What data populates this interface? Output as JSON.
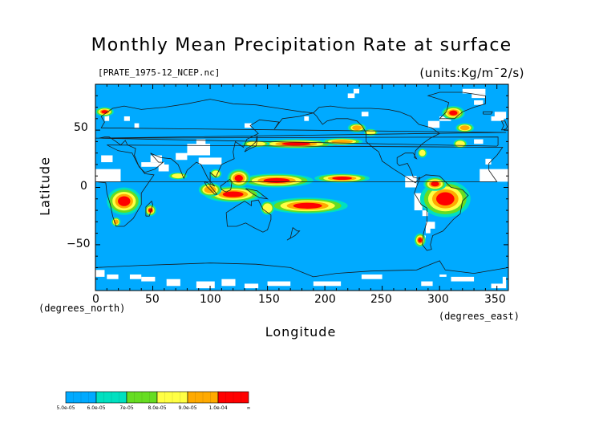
{
  "title": "Monthly Mean Precipitation Rate at surface",
  "file_label": "[PRATE_1975-12_NCEP.nc]",
  "units_label": "(units:Kg/m¯2/s)",
  "y_axis": {
    "label": "Latitude",
    "note": "(degrees_north)",
    "ticks": [
      "50",
      "0",
      "−50"
    ]
  },
  "x_axis": {
    "label": "Longitude",
    "note": "(degrees_east)",
    "ticks": [
      "0",
      "50",
      "100",
      "150",
      "200",
      "250",
      "300",
      "350"
    ]
  },
  "colorbar": {
    "labels": [
      "5.0e-05",
      "6.0e-05",
      "7e-05",
      "8.0e-05",
      "9.0e-05",
      "1.0e-04",
      "∞"
    ],
    "colors": [
      "#00aaff",
      "#00e0c0",
      "#66dd22",
      "#ffff44",
      "#ffaa00",
      "#ff0000"
    ]
  },
  "colors": {
    "ocean_base": "#00aaff",
    "missing": "#ffffff",
    "coast": "#1a1a1a",
    "level_1": "#00e0c0",
    "level_2": "#66dd22",
    "level_3": "#ffff44",
    "level_4": "#ffaa00",
    "level_5": "#ff0000"
  },
  "chart_data": {
    "type": "heatmap",
    "title": "Monthly Mean Precipitation Rate at surface",
    "xlabel": "Longitude",
    "ylabel": "Latitude",
    "xlim": [
      0,
      360
    ],
    "ylim": [
      -90,
      90
    ],
    "x_ticks": [
      0,
      50,
      100,
      150,
      200,
      250,
      300,
      350
    ],
    "y_ticks": [
      -50,
      0,
      50
    ],
    "levels": [
      5e-05,
      6e-05,
      7e-05,
      8e-05,
      9e-05,
      0.0001
    ],
    "heavy_regions": [
      {
        "lon": [
          120,
          185
        ],
        "lat": [
          -2,
          10
        ]
      },
      {
        "lon": [
          150,
          220
        ],
        "lat": [
          -22,
          -8
        ]
      },
      {
        "lon": [
          95,
          150
        ],
        "lat": [
          -15,
          5
        ]
      },
      {
        "lon": [
          200,
          250
        ],
        "lat": [
          5,
          12
        ]
      },
      {
        "lon": [
          285,
          320
        ],
        "lat": [
          -25,
          5
        ]
      },
      {
        "lon": [
          5,
          40
        ],
        "lat": [
          -25,
          -3
        ]
      },
      {
        "lon": [
          150,
          215
        ],
        "lat": [
          35,
          42
        ]
      },
      {
        "lon": [
          0,
          20
        ],
        "lat": [
          60,
          70
        ]
      },
      {
        "lon": [
          300,
          325
        ],
        "lat": [
          55,
          70
        ]
      },
      {
        "lon": [
          280,
          290
        ],
        "lat": [
          -50,
          -42
        ]
      }
    ]
  }
}
